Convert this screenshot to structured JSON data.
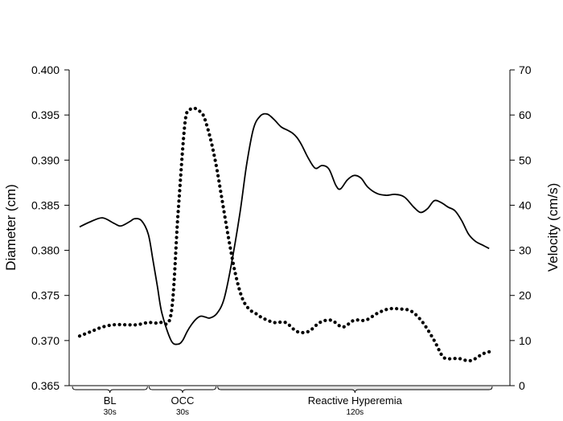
{
  "chart_data": {
    "type": "line",
    "ylabel_left": "Diameter (cm)",
    "ylabel_right": "Velocity (cm/s)",
    "ylim_left": [
      0.365,
      0.4
    ],
    "yticks_left": [
      "0.365",
      "0.370",
      "0.375",
      "0.380",
      "0.385",
      "0.390",
      "0.395",
      "0.400"
    ],
    "ylim_right": [
      0,
      70
    ],
    "yticks_right": [
      "0",
      "10",
      "20",
      "30",
      "40",
      "50",
      "60",
      "70"
    ],
    "xlim": [
      0,
      180
    ],
    "x_unit": "s",
    "grid": false,
    "phases": [
      {
        "label": "BL",
        "duration": "30s",
        "start": 0,
        "end": 30
      },
      {
        "label": "OCC",
        "duration": "30s",
        "start": 30,
        "end": 60
      },
      {
        "label": "Reactive Hyperemia",
        "duration": "120s",
        "start": 60,
        "end": 180
      }
    ],
    "series": [
      {
        "axis": "left",
        "style": "solid",
        "x": [
          0,
          5,
          10,
          15,
          18,
          22,
          24,
          27,
          30,
          32,
          34,
          36,
          40,
          43,
          45,
          47,
          49,
          51,
          53,
          55,
          57,
          60,
          63,
          66,
          70,
          73,
          76,
          79,
          82,
          85,
          88,
          91,
          93,
          95,
          97,
          100,
          103,
          106,
          109,
          112,
          114,
          117,
          120,
          123,
          126,
          130,
          134,
          138,
          142,
          146,
          149,
          152,
          155,
          158,
          161,
          164,
          167,
          170,
          173,
          176,
          179
        ],
        "y": [
          0.3826,
          0.3832,
          0.3836,
          0.383,
          0.3827,
          0.3832,
          0.3835,
          0.3833,
          0.3818,
          0.379,
          0.376,
          0.373,
          0.37,
          0.3696,
          0.37,
          0.371,
          0.3718,
          0.3724,
          0.3727,
          0.3726,
          0.3725,
          0.373,
          0.3745,
          0.378,
          0.384,
          0.3895,
          0.3935,
          0.3949,
          0.3951,
          0.3945,
          0.3937,
          0.3933,
          0.393,
          0.3925,
          0.3917,
          0.3902,
          0.3891,
          0.3894,
          0.389,
          0.3872,
          0.3868,
          0.3878,
          0.3883,
          0.388,
          0.387,
          0.3863,
          0.3861,
          0.3862,
          0.3859,
          0.3848,
          0.3842,
          0.3846,
          0.3855,
          0.3853,
          0.3848,
          0.3844,
          0.3833,
          0.3818,
          0.381,
          0.3806,
          0.3802
        ]
      },
      {
        "axis": "right",
        "style": "dotted",
        "x": [
          0,
          5,
          10,
          15,
          20,
          25,
          30,
          35,
          40,
          43,
          46,
          48,
          50,
          52,
          54,
          56,
          58,
          60,
          62,
          65,
          68,
          71,
          74,
          77,
          80,
          85,
          90,
          95,
          100,
          105,
          110,
          115,
          120,
          125,
          130,
          135,
          140,
          145,
          150,
          155,
          158,
          160,
          163,
          166,
          170,
          173,
          176,
          179
        ],
        "y": [
          11,
          12,
          13,
          13.5,
          13.5,
          13.5,
          14,
          14,
          16,
          38,
          58,
          61,
          61.5,
          61,
          60,
          57,
          53,
          48,
          42,
          33,
          25,
          19.5,
          17,
          16,
          15,
          14,
          14,
          12,
          12,
          14,
          14.5,
          13,
          14.5,
          14.5,
          16,
          17,
          17,
          16.5,
          14,
          10,
          7,
          6,
          6,
          6,
          5.5,
          6,
          7,
          7.5
        ]
      }
    ]
  }
}
